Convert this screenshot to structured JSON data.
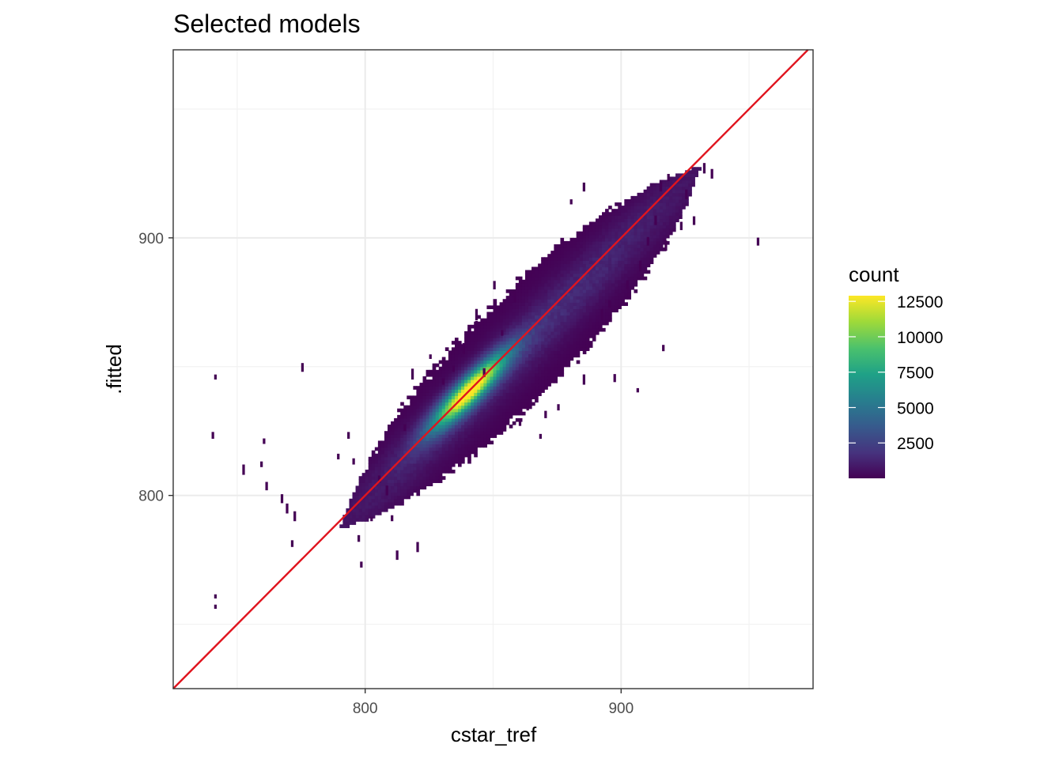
{
  "chart_data": {
    "type": "heatmap",
    "title": "Selected models",
    "xlabel": "cstar_tref",
    "ylabel": ".fitted",
    "xlim": [
      725,
      975
    ],
    "ylim": [
      725,
      973
    ],
    "x_ticks": [
      800,
      900
    ],
    "y_ticks": [
      800,
      900
    ],
    "grid": true,
    "colormap": "viridis",
    "legend": {
      "title": "count",
      "position": "right",
      "min": 1,
      "max": 12900,
      "ticks": [
        2500,
        5000,
        7500,
        10000,
        12500
      ]
    },
    "density": {
      "description_bins": "2D histogram of cstar_tref vs .fitted",
      "center": [
        840,
        840
      ],
      "peak_count": 12900,
      "main_axis_from": [
        790,
        790
      ],
      "main_axis_to": [
        930,
        920
      ]
    },
    "reference_line": {
      "slope": 1,
      "intercept": 0,
      "color": "#e0141e"
    }
  },
  "colors": {
    "panel_border": "#333333",
    "grid_major": "#ebebeb",
    "grid_minor": "#f2f2f2",
    "ref_line": "#e0141e"
  }
}
